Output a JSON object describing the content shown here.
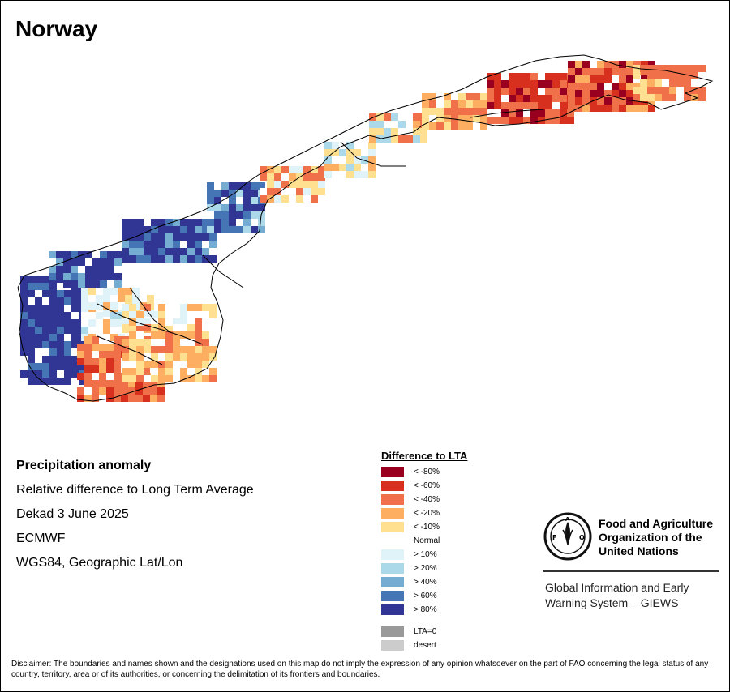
{
  "title": "Norway",
  "info": {
    "heading": "Precipitation anomaly",
    "line1": "Relative difference to Long Term Average",
    "line2": "Dekad 3 June 2025",
    "line3": "ECMWF",
    "line4": "WGS84, Geographic Lat/Lon"
  },
  "legend": {
    "title": "Difference to LTA",
    "items": [
      {
        "label": "< -80%",
        "color": "#99001f"
      },
      {
        "label": "< -60%",
        "color": "#d7301f"
      },
      {
        "label": "< -40%",
        "color": "#f0704a"
      },
      {
        "label": "< -20%",
        "color": "#fdae61"
      },
      {
        "label": "< -10%",
        "color": "#fee090"
      },
      {
        "label": "Normal",
        "color": "#ffffff"
      },
      {
        "label": "> 10%",
        "color": "#e0f3f8"
      },
      {
        "label": "> 20%",
        "color": "#abd9e9"
      },
      {
        "label": "> 40%",
        "color": "#74add1"
      },
      {
        "label": "> 60%",
        "color": "#4575b4"
      },
      {
        "label": "> 80%",
        "color": "#313695"
      }
    ],
    "extra": [
      {
        "label": "LTA=0",
        "color": "#999999"
      },
      {
        "label": "desert",
        "color": "#cccccc"
      }
    ]
  },
  "fao": {
    "name": "Food and Agriculture Organization of the United Nations",
    "system": "Global Information and Early Warning System – GIEWS",
    "logo_text": "FAO",
    "logo_motto": "FIAT PANIS"
  },
  "disclaimer": "Disclaimer: The boundaries and names shown and the designations used on this map do not imply the expression of any opinion whatsoever on the part of FAO concerning the legal status of any country, territory, area or of its authorities, or concerning the delimitation of its frontiers and boundaries."
}
